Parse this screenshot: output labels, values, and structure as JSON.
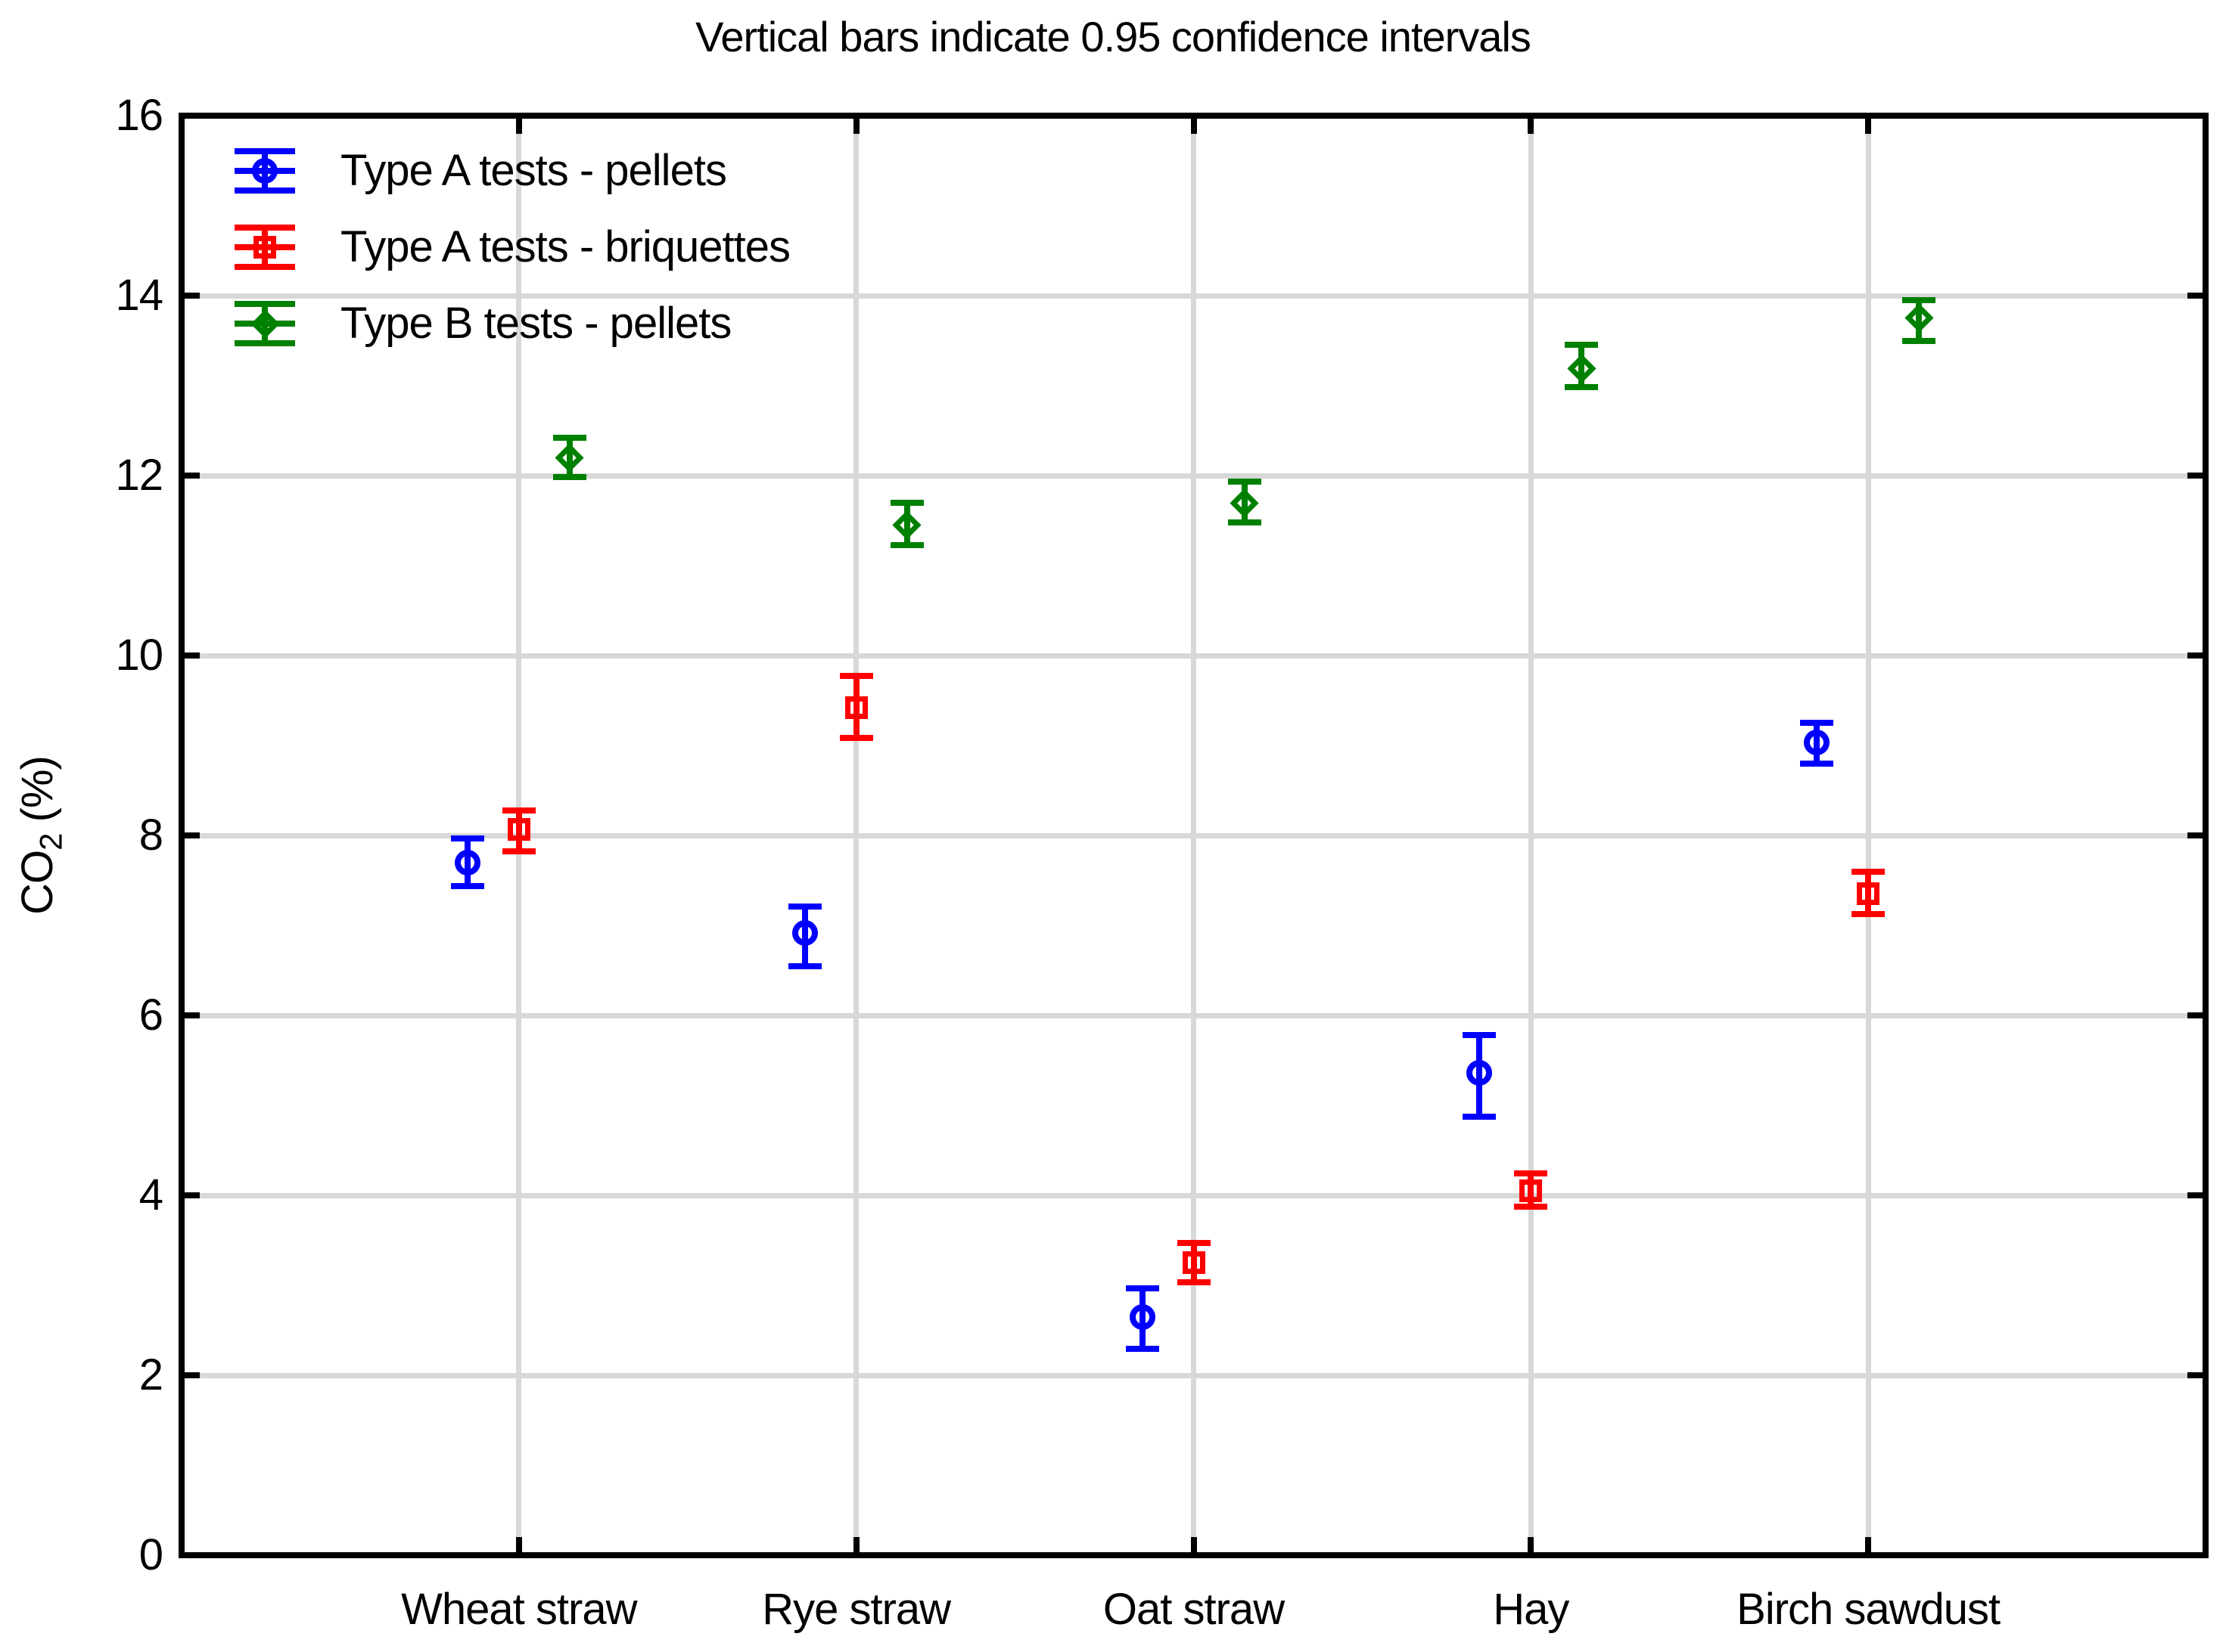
{
  "title": "Vertical bars indicate 0.95 confidence intervals",
  "colors": {
    "series_a_pellets": "#0000ff",
    "series_a_briquettes": "#ff0000",
    "series_b_pellets": "#008000",
    "gridline": "#d8d8d8",
    "axis": "#000000",
    "background": "#ffffff"
  },
  "chart_data": {
    "type": "scatter",
    "title": "Vertical bars indicate 0.95 confidence intervals",
    "subtitle": "",
    "error_bars": "0.95 confidence intervals",
    "ylabel": {
      "prefix": "CO",
      "sub": "2",
      "suffix": " (%)"
    },
    "xlabel": "",
    "ylim": [
      0,
      16
    ],
    "ytick_step": 2,
    "ytick_labels": [
      "0",
      "2",
      "4",
      "6",
      "8",
      "10",
      "12",
      "14",
      "16"
    ],
    "grid": true,
    "legend_position": "top-left-inside",
    "categories": [
      "Wheat straw",
      "Rye straw",
      "Oat straw",
      "Hay",
      "Birch sawdust"
    ],
    "series": [
      {
        "name": "Type A tests - pellets",
        "marker": "circle",
        "color": "#0000ff",
        "values": [
          7.7,
          6.92,
          2.65,
          5.36,
          9.03
        ],
        "ci_low": [
          7.44,
          6.55,
          2.29,
          4.87,
          8.8
        ],
        "ci_high": [
          7.97,
          7.21,
          2.97,
          5.78,
          9.25
        ]
      },
      {
        "name": "Type A tests - briquettes",
        "marker": "square",
        "color": "#ff0000",
        "values": [
          8.07,
          9.42,
          3.25,
          4.05,
          7.35
        ],
        "ci_low": [
          7.82,
          9.08,
          3.03,
          3.87,
          7.13
        ],
        "ci_high": [
          8.28,
          9.77,
          3.47,
          4.24,
          7.6
        ]
      },
      {
        "name": "Type B tests - pellets",
        "marker": "diamond",
        "color": "#008000",
        "values": [
          12.2,
          11.45,
          11.69,
          13.19,
          13.75
        ],
        "ci_low": [
          11.98,
          11.23,
          11.48,
          12.98,
          13.5
        ],
        "ci_high": [
          12.42,
          11.7,
          11.93,
          13.45,
          13.95
        ]
      }
    ]
  }
}
